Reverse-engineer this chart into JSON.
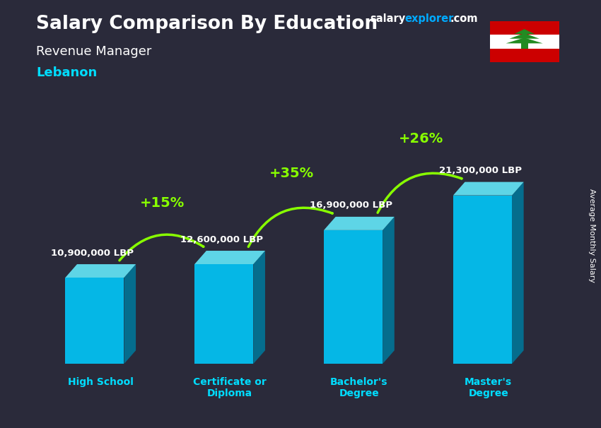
{
  "title": "Salary Comparison By Education",
  "subtitle": "Revenue Manager",
  "country": "Lebanon",
  "ylabel": "Average Monthly Salary",
  "categories": [
    "High School",
    "Certificate or\nDiploma",
    "Bachelor's\nDegree",
    "Master's\nDegree"
  ],
  "values": [
    10900000,
    12600000,
    16900000,
    21300000
  ],
  "labels": [
    "10,900,000 LBP",
    "12,600,000 LBP",
    "16,900,000 LBP",
    "21,300,000 LBP"
  ],
  "pct_labels": [
    "+15%",
    "+35%",
    "+26%"
  ],
  "bar_face_color": "#00ccff",
  "bar_side_color": "#007799",
  "bar_top_color": "#66eeff",
  "background_color": "#2a2a3a",
  "title_color": "#ffffff",
  "subtitle_color": "#ffffff",
  "country_color": "#00ddff",
  "label_color": "#ffffff",
  "pct_color": "#88ff00",
  "arrow_color": "#88ff00",
  "site_salary_color": "#ffffff",
  "site_explorer_color": "#00aaff",
  "ylabel_color": "#ffffff",
  "flag_red": "#cc0000",
  "flag_green": "#228B22"
}
